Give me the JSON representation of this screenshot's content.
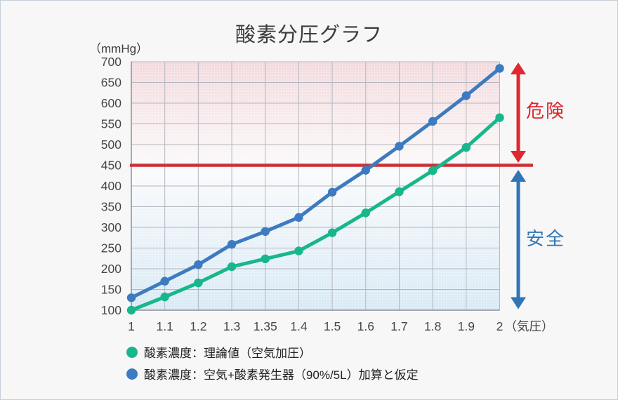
{
  "chart_data": {
    "type": "line",
    "title": "酸素分圧グラフ",
    "y_axis_unit": "（mmHg）",
    "x_axis_unit": "（気圧）",
    "categories": [
      "1",
      "1.1",
      "1.2",
      "1.3",
      "1.35",
      "1.4",
      "1.5",
      "1.6",
      "1.7",
      "1.8",
      "1.9",
      "2"
    ],
    "ylim": [
      100,
      700
    ],
    "y_ticks": [
      100,
      150,
      200,
      250,
      300,
      350,
      400,
      450,
      500,
      550,
      600,
      650,
      700
    ],
    "grid": true,
    "legend_position": "bottom-left",
    "threshold": {
      "value": 450,
      "color": "#cb3138"
    },
    "series": [
      {
        "name": "酸素濃度：理論値（空気加圧）",
        "color": "#17b78b",
        "values": [
          100,
          132,
          166,
          205,
          224,
          243,
          287,
          335,
          386,
          437,
          493,
          565
        ]
      },
      {
        "name": "酸素濃度：空気+酸素発生器（90%/5L）加算と仮定",
        "color": "#3d7bc0",
        "values": [
          130,
          170,
          210,
          259,
          290,
          324,
          385,
          438,
          496,
          556,
          618,
          684
        ]
      }
    ],
    "zones": [
      {
        "label": "危険",
        "from": 450,
        "to": 700,
        "arrow_color": "#e02830",
        "label_color": "#e0242d"
      },
      {
        "label": "安全",
        "from": 100,
        "to": 450,
        "arrow_color": "#3076b6",
        "label_color": "#3076b6"
      }
    ],
    "colors": {
      "danger_bg_top": "#f2d7db",
      "danger_bg_bottom": "#fbf9f9",
      "safe_bg_top": "#fafbfc",
      "safe_bg_bottom": "#d6e8f4",
      "fine_grid": "#ffffff",
      "grid_major": "#b3b6be",
      "axis": "#8b9098"
    }
  }
}
